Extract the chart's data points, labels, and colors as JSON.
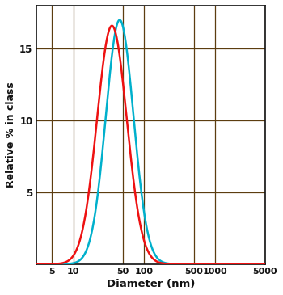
{
  "title": "",
  "xlabel": "Diameter (nm)",
  "ylabel": "Relative % in class",
  "xlim": [
    3,
    5000
  ],
  "ylim": [
    0,
    18
  ],
  "yticks": [
    5,
    10,
    15
  ],
  "xtick_vals": [
    5,
    10,
    50,
    100,
    500,
    1000,
    5000
  ],
  "xtick_labels": [
    "5",
    "10",
    "50",
    "100",
    "500",
    "1000",
    "5000"
  ],
  "grid_color": "#5c3d10",
  "line_color_red": "#ee1111",
  "line_color_cyan": "#00b0cc",
  "bg_color": "#ffffff",
  "red_peak_nm": 35,
  "red_peak_val": 16.6,
  "red_sigma_log": 0.21,
  "cyan_peak_nm": 45,
  "cyan_peak_val": 17.0,
  "cyan_sigma_log": 0.195,
  "linewidth": 1.8
}
